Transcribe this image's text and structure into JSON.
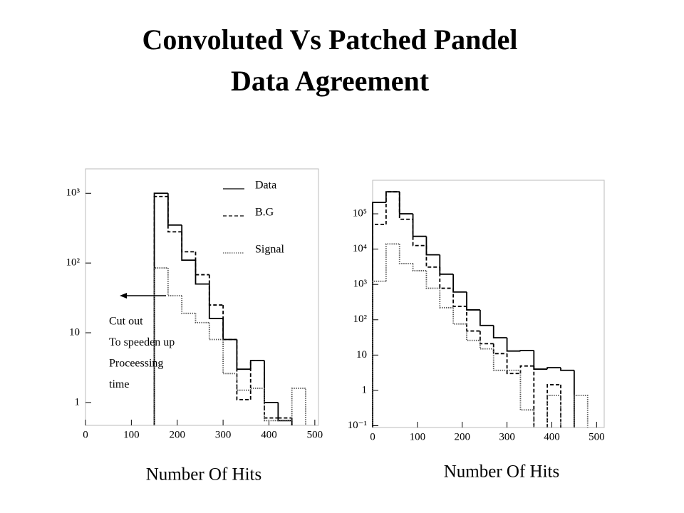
{
  "title": [
    "Convoluted Vs Patched Pandel",
    "Data Agreement"
  ],
  "chart_data": [
    {
      "type": "histogram",
      "log_y": true,
      "xlabel": "Number Of Hits",
      "bins": [
        150,
        180,
        210,
        240,
        270,
        300,
        330,
        360,
        390,
        420,
        450,
        480
      ],
      "xlim": [
        0,
        508
      ],
      "xticks": [
        0,
        100,
        200,
        300,
        400,
        500
      ],
      "ylim": [
        0.47,
        2240
      ],
      "yticks": [
        1,
        10,
        {
          "value": 100,
          "label": "10²"
        },
        {
          "value": 1000,
          "label": "10³"
        }
      ],
      "legend": "top-right",
      "series": [
        {
          "name": "Data",
          "color": "#000000",
          "dash": "solid",
          "values": [
            1000,
            350,
            110,
            50,
            16,
            8,
            3,
            4,
            1,
            0.55,
            null
          ]
        },
        {
          "name": "B.G",
          "color": "#000000",
          "dash": "dashed",
          "values": [
            900,
            280,
            145,
            68,
            25,
            8,
            1.1,
            4,
            0.6,
            0.6,
            null
          ]
        },
        {
          "name": "Signal",
          "color": "#555555",
          "dash": "dotted",
          "values": [
            85,
            34,
            19,
            14,
            8,
            2.6,
            1.5,
            1.6,
            0.55,
            0.55,
            1.6
          ]
        }
      ],
      "annotation": [
        "Cut out",
        "To speeden up",
        "Proceessing",
        "time"
      ]
    },
    {
      "type": "histogram",
      "log_y": true,
      "xlabel": "Number Of Hits",
      "bins": [
        0,
        30,
        60,
        90,
        120,
        150,
        180,
        210,
        240,
        270,
        300,
        330,
        360,
        390,
        420,
        450,
        480
      ],
      "xlim": [
        0,
        517
      ],
      "xticks": [
        0,
        100,
        200,
        300,
        400,
        500
      ],
      "ylim": [
        0.089,
        890000
      ],
      "yticks": [
        {
          "value": 0.1,
          "label": "10⁻¹"
        },
        1,
        10,
        {
          "value": 100,
          "label": "10²"
        },
        {
          "value": 1000,
          "label": "10³"
        },
        {
          "value": 10000,
          "label": "10⁴"
        },
        {
          "value": 100000,
          "label": "10⁵"
        }
      ],
      "series": [
        {
          "color": "#000000",
          "dash": "solid",
          "values": [
            210000,
            420000,
            100000,
            23000,
            6900,
            1950,
            610,
            190,
            69,
            31,
            13,
            13.5,
            4,
            4.4,
            3.7,
            null
          ]
        },
        {
          "color": "#000000",
          "dash": "dashed",
          "values": [
            50000,
            420000,
            70000,
            12600,
            3100,
            780,
            240,
            48,
            21,
            11,
            3,
            4.9,
            null,
            1.45,
            null,
            null
          ]
        },
        {
          "color": "#555555",
          "dash": "dotted",
          "values": [
            1230,
            14000,
            3900,
            2450,
            780,
            220,
            76,
            26,
            15,
            3.7,
            3.7,
            0.28,
            null,
            0.72,
            null,
            0.72
          ]
        }
      ]
    }
  ]
}
